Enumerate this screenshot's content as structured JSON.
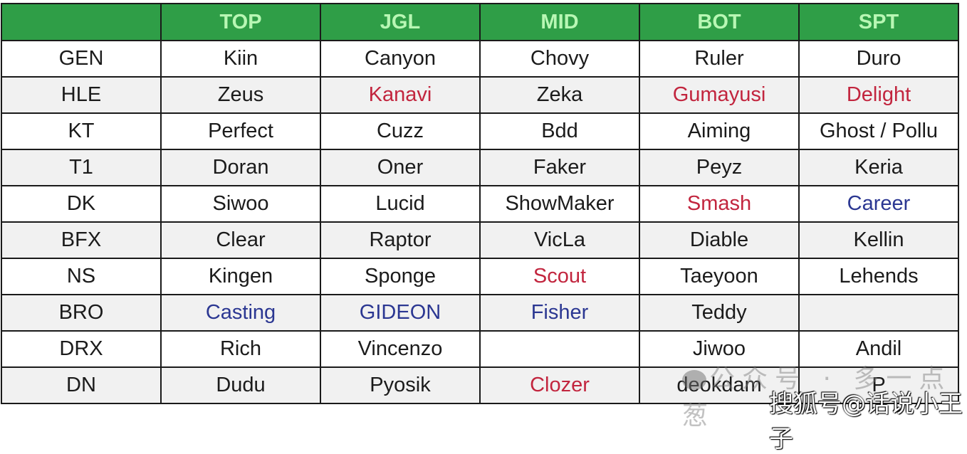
{
  "header": [
    "",
    "TOP",
    "JGL",
    "MID",
    "BOT",
    "SPT"
  ],
  "colors": {
    "header_bg": "#2f9e47",
    "header_text": "#b8f7b4",
    "red": "#c2253e",
    "blue": "#2b3792"
  },
  "rows": [
    {
      "team": "GEN",
      "cells": [
        {
          "t": "Kiin"
        },
        {
          "t": "Canyon"
        },
        {
          "t": "Chovy"
        },
        {
          "t": "Ruler"
        },
        {
          "t": "Duro"
        }
      ]
    },
    {
      "team": "HLE",
      "cells": [
        {
          "t": "Zeus"
        },
        {
          "t": "Kanavi",
          "c": "red"
        },
        {
          "t": "Zeka"
        },
        {
          "t": "Gumayusi",
          "c": "red"
        },
        {
          "t": "Delight",
          "c": "red"
        }
      ]
    },
    {
      "team": "KT",
      "cells": [
        {
          "t": "Perfect"
        },
        {
          "t": "Cuzz"
        },
        {
          "t": "Bdd"
        },
        {
          "t": "Aiming"
        },
        {
          "t": "Ghost / Pollu"
        }
      ]
    },
    {
      "team": "T1",
      "cells": [
        {
          "t": "Doran"
        },
        {
          "t": "Oner"
        },
        {
          "t": "Faker"
        },
        {
          "t": "Peyz"
        },
        {
          "t": "Keria"
        }
      ]
    },
    {
      "team": "DK",
      "cells": [
        {
          "t": "Siwoo"
        },
        {
          "t": "Lucid"
        },
        {
          "t": "ShowMaker"
        },
        {
          "t": "Smash",
          "c": "red"
        },
        {
          "t": "Career",
          "c": "blue"
        }
      ]
    },
    {
      "team": "BFX",
      "cells": [
        {
          "t": "Clear"
        },
        {
          "t": "Raptor"
        },
        {
          "t": "VicLa"
        },
        {
          "t": "Diable"
        },
        {
          "t": "Kellin"
        }
      ]
    },
    {
      "team": "NS",
      "cells": [
        {
          "t": "Kingen"
        },
        {
          "t": "Sponge"
        },
        {
          "t": "Scout",
          "c": "red"
        },
        {
          "t": "Taeyoon"
        },
        {
          "t": "Lehends"
        }
      ]
    },
    {
      "team": "BRO",
      "cells": [
        {
          "t": "Casting",
          "c": "blue"
        },
        {
          "t": "GIDEON",
          "c": "blue"
        },
        {
          "t": "Fisher",
          "c": "blue"
        },
        {
          "t": "Teddy"
        },
        {
          "t": ""
        }
      ]
    },
    {
      "team": "DRX",
      "cells": [
        {
          "t": "Rich"
        },
        {
          "t": "Vincenzo"
        },
        {
          "t": ""
        },
        {
          "t": "Jiwoo"
        },
        {
          "t": "Andil"
        }
      ]
    },
    {
      "team": "DN",
      "cells": [
        {
          "t": "Dudu"
        },
        {
          "t": "Pyosik"
        },
        {
          "t": "Clozer",
          "c": "red"
        },
        {
          "t": "deokdam"
        },
        {
          "t": "P"
        }
      ]
    }
  ],
  "watermarks": [
    "公众号 · 多一点葱",
    "搜狐号@话说小王子"
  ]
}
